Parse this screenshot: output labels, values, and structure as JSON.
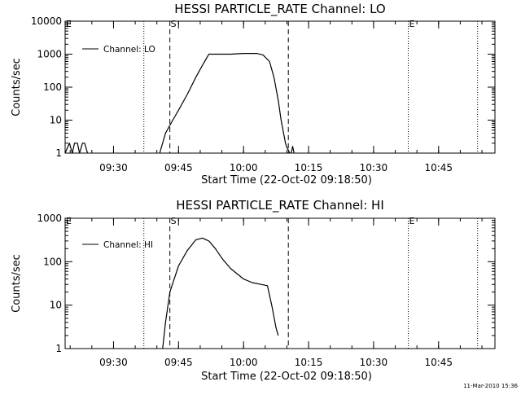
{
  "chart_data": [
    {
      "type": "line",
      "title": "HESSI PARTICLE_RATE Channel: LO",
      "xlabel": "Start Time (22-Oct-02 09:18:50)",
      "ylabel": "Counts/sec",
      "yscale": "log",
      "ylim": [
        1,
        10000
      ],
      "xlim": [
        "09:18:50",
        "10:58:00"
      ],
      "x_ticks": [
        "09:30",
        "09:45",
        "10:00",
        "10:15",
        "10:30",
        "10:45"
      ],
      "y_ticks": [
        "1",
        "10",
        "100",
        "1000",
        "10000"
      ],
      "legend": {
        "label": "Channel: LO",
        "placement": "top-left"
      },
      "markers": [
        {
          "label": "E",
          "time": "09:18:50",
          "style": "none"
        },
        {
          "label": "",
          "time": "09:37:00",
          "style": "dotted"
        },
        {
          "label": "S",
          "time": "09:43:00",
          "style": "dashed"
        },
        {
          "label": "",
          "time": "10:10:20",
          "style": "dashed"
        },
        {
          "label": "E",
          "time": "10:38:00",
          "style": "dotted"
        },
        {
          "label": "",
          "time": "10:54:00",
          "style": "dotted"
        }
      ],
      "series": [
        {
          "x": [
            "09:18:50",
            "09:19:50",
            "09:20:30",
            "09:21:00",
            "09:21:40",
            "09:22:10",
            "09:22:50",
            "09:23:20",
            "09:24:00"
          ],
          "y": [
            1,
            2,
            1,
            2,
            2,
            1,
            2,
            2,
            1
          ]
        },
        {
          "x": [
            "09:40:40",
            "09:42:00",
            "09:43:40",
            "09:45:00",
            "09:47:00",
            "09:49:00",
            "09:50:40",
            "09:52:00",
            "09:54:00",
            "09:57:00",
            "10:00:00",
            "10:03:00",
            "10:04:30",
            "10:06:00",
            "10:07:00",
            "10:08:00",
            "10:08:40",
            "10:09:40",
            "10:10:00",
            "10:10:40"
          ],
          "y": [
            1,
            4,
            10,
            20,
            60,
            200,
            500,
            1000,
            1000,
            1000,
            1050,
            1050,
            950,
            600,
            200,
            40,
            10,
            2,
            1.5,
            1
          ]
        },
        {
          "x": [
            "10:11:00",
            "10:11:20",
            "10:11:40"
          ],
          "y": [
            1,
            1.6,
            1
          ]
        }
      ]
    },
    {
      "type": "line",
      "title": "HESSI PARTICLE_RATE Channel: HI",
      "xlabel": "Start Time (22-Oct-02 09:18:50)",
      "ylabel": "Counts/sec",
      "yscale": "log",
      "ylim": [
        1,
        1000
      ],
      "xlim": [
        "09:18:50",
        "10:58:00"
      ],
      "x_ticks": [
        "09:30",
        "09:45",
        "10:00",
        "10:15",
        "10:30",
        "10:45"
      ],
      "y_ticks": [
        "1",
        "10",
        "100",
        "1000"
      ],
      "legend": {
        "label": "Channel: HI",
        "placement": "top-left"
      },
      "markers": [
        {
          "label": "E",
          "time": "09:18:50",
          "style": "none"
        },
        {
          "label": "",
          "time": "09:37:00",
          "style": "dotted"
        },
        {
          "label": "S",
          "time": "09:43:00",
          "style": "dashed"
        },
        {
          "label": "",
          "time": "10:10:20",
          "style": "dashed"
        },
        {
          "label": "E",
          "time": "10:38:00",
          "style": "dotted"
        },
        {
          "label": "",
          "time": "10:54:00",
          "style": "dotted"
        }
      ],
      "series": [
        {
          "x": [
            "09:41:20",
            "09:42:00",
            "09:43:00",
            "09:45:00",
            "09:47:00",
            "09:49:00",
            "09:50:30",
            "09:52:00",
            "09:53:30",
            "09:55:00",
            "09:57:00",
            "10:00:00",
            "10:02:00",
            "10:04:00",
            "10:05:30",
            "10:06:30",
            "10:07:30",
            "10:08:00"
          ],
          "y": [
            1,
            4,
            20,
            80,
            180,
            320,
            350,
            300,
            200,
            120,
            70,
            40,
            33,
            30,
            28,
            10,
            3,
            2
          ]
        }
      ]
    }
  ],
  "timestamp": "11-Mar-2010 15:36"
}
